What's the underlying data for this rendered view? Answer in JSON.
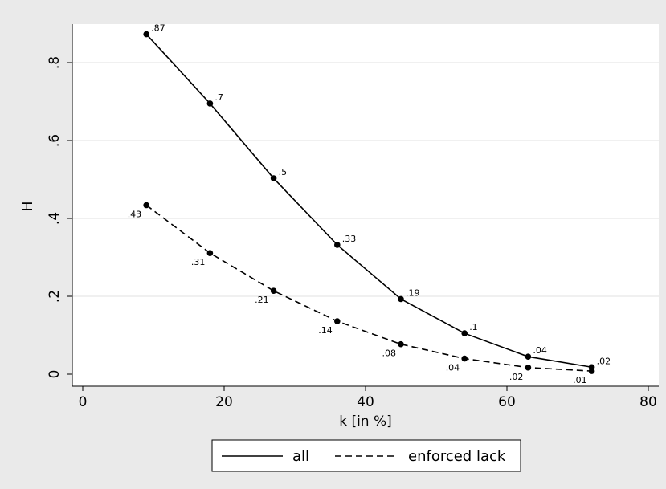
{
  "chart_data": {
    "type": "line",
    "xlabel": "k [in %]",
    "ylabel": "H",
    "xlim": [
      0,
      80
    ],
    "ylim": [
      0,
      0.9
    ],
    "x_ticks": [
      0,
      20,
      40,
      60,
      80
    ],
    "x_tick_labels": [
      "0",
      "20",
      "40",
      "60",
      "80"
    ],
    "y_ticks": [
      0,
      0.2,
      0.4,
      0.6,
      0.8
    ],
    "y_tick_labels": [
      "0",
      ".2",
      ".4",
      ".6",
      ".8"
    ],
    "grid": "horizontal",
    "legend_position": "bottom",
    "x": [
      9,
      18,
      27,
      36,
      45,
      54,
      63,
      72
    ],
    "series": [
      {
        "name": "all",
        "style": "solid",
        "color": "#000000",
        "values": [
          0.873,
          0.695,
          0.503,
          0.332,
          0.193,
          0.105,
          0.045,
          0.018
        ],
        "labels": [
          ".87",
          ".7",
          ".5",
          ".33",
          ".19",
          ".1",
          ".04",
          ".02"
        ],
        "label_side": "right"
      },
      {
        "name": "enforced lack",
        "style": "dashed",
        "color": "#000000",
        "values": [
          0.434,
          0.311,
          0.214,
          0.136,
          0.077,
          0.04,
          0.017,
          0.008
        ],
        "labels": [
          ".43",
          ".31",
          ".21",
          ".14",
          ".08",
          ".04",
          ".02",
          ".01"
        ],
        "label_side": "left"
      }
    ]
  }
}
